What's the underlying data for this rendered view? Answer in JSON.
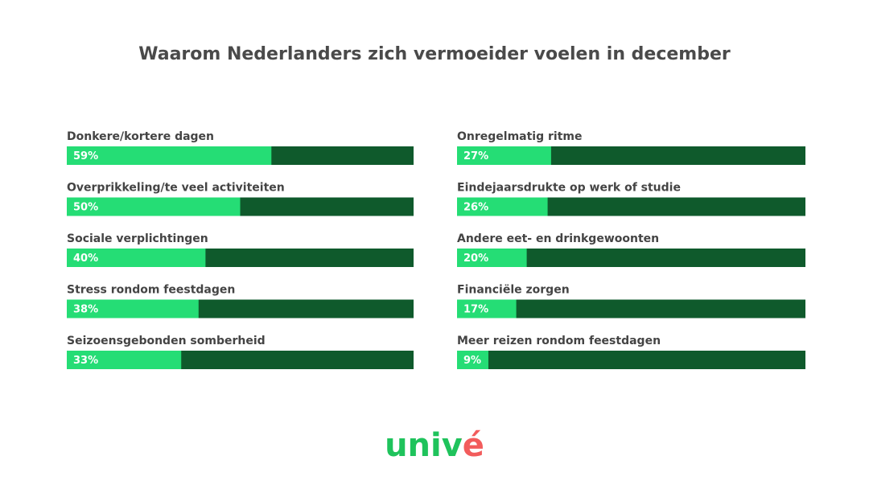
{
  "chart_data": {
    "type": "bar",
    "orientation": "horizontal",
    "title": "Waarom Nederlanders zich vermoeider voelen in december",
    "categories": [
      "Donkere/kortere dagen",
      "Overprikkeling/te veel activiteiten",
      "Sociale verplichtingen",
      "Stress rondom feestdagen",
      "Seizoensgebonden somberheid",
      "Onregelmatig ritme",
      "Eindejaarsdrukte op werk of studie",
      "Andere eet- en drinkgewoonten",
      "Financiële zorgen",
      "Meer reizen rondom feestdagen"
    ],
    "values": [
      59,
      50,
      40,
      38,
      33,
      27,
      26,
      20,
      17,
      9
    ],
    "value_labels": [
      "59%",
      "50%",
      "40%",
      "38%",
      "33%",
      "27%",
      "26%",
      "20%",
      "17%",
      "9%"
    ],
    "xlim": [
      0,
      100
    ],
    "color": "#25dd75",
    "track_color": "#0f5a2c"
  },
  "logo": "univé"
}
